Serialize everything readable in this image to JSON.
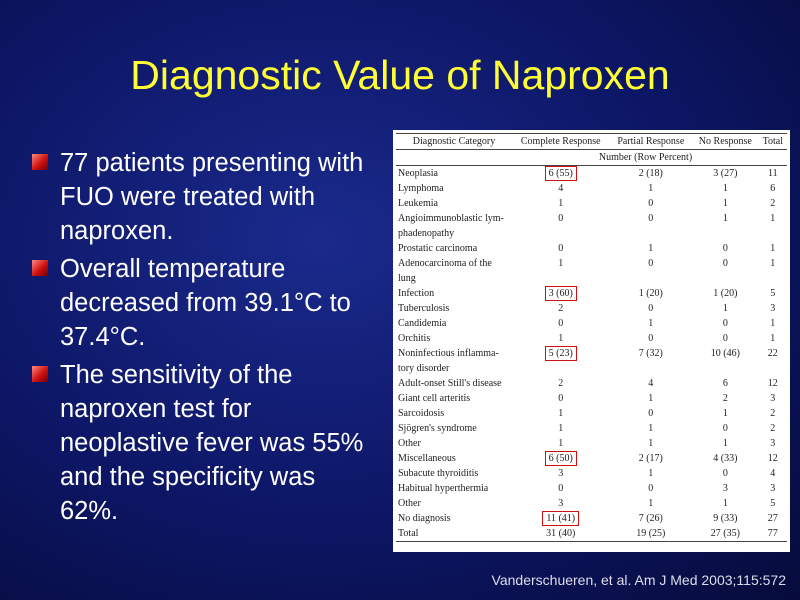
{
  "title": "Diagnostic Value of Naproxen",
  "bullets": [
    "77 patients presenting with FUO were treated with naproxen.",
    "Overall temperature decreased from 39.1°C to 37.4°C.",
    "The sensitivity of the naproxen test for neoplastive fever was 55% and the specificity was 62%."
  ],
  "table": {
    "columns": [
      "Diagnostic Category",
      "Complete Response",
      "Partial Response",
      "No Response",
      "Total"
    ],
    "subheader": "Number (Row Percent)",
    "rows": [
      {
        "cells": [
          "Neoplasia",
          "6 (55)",
          "2 (18)",
          "3 (27)",
          "11"
        ],
        "highlight": true
      },
      {
        "cells": [
          "Lymphoma",
          "4",
          "1",
          "1",
          "6"
        ]
      },
      {
        "cells": [
          "Leukemia",
          "1",
          "0",
          "1",
          "2"
        ]
      },
      {
        "cells": [
          "Angioimmunoblastic lym- phadenopathy",
          "0",
          "0",
          "1",
          "1"
        ]
      },
      {
        "cells": [
          "Prostatic carcinoma",
          "0",
          "1",
          "0",
          "1"
        ]
      },
      {
        "cells": [
          "Adenocarcinoma of the lung",
          "1",
          "0",
          "0",
          "1"
        ]
      },
      {
        "cells": [
          "Infection",
          "3 (60)",
          "1 (20)",
          "1 (20)",
          "5"
        ],
        "highlight": true
      },
      {
        "cells": [
          "Tuberculosis",
          "2",
          "0",
          "1",
          "3"
        ]
      },
      {
        "cells": [
          "Candidemia",
          "0",
          "1",
          "0",
          "1"
        ]
      },
      {
        "cells": [
          "Orchitis",
          "1",
          "0",
          "0",
          "1"
        ]
      },
      {
        "cells": [
          "Noninfectious inflamma- tory disorder",
          "5 (23)",
          "7 (32)",
          "10 (46)",
          "22"
        ],
        "highlight": true
      },
      {
        "cells": [
          "Adult-onset Still's disease",
          "2",
          "4",
          "6",
          "12"
        ]
      },
      {
        "cells": [
          "Giant cell arteritis",
          "0",
          "1",
          "2",
          "3"
        ]
      },
      {
        "cells": [
          "Sarcoidosis",
          "1",
          "0",
          "1",
          "2"
        ]
      },
      {
        "cells": [
          "Sjögren's syndrome",
          "1",
          "1",
          "0",
          "2"
        ]
      },
      {
        "cells": [
          "Other",
          "1",
          "1",
          "1",
          "3"
        ]
      },
      {
        "cells": [
          "Miscellaneous",
          "6 (50)",
          "2 (17)",
          "4 (33)",
          "12"
        ],
        "highlight": true
      },
      {
        "cells": [
          "Subacute thyroiditis",
          "3",
          "1",
          "0",
          "4"
        ]
      },
      {
        "cells": [
          "Habitual hyperthermia",
          "0",
          "0",
          "3",
          "3"
        ]
      },
      {
        "cells": [
          "Other",
          "3",
          "1",
          "1",
          "5"
        ]
      },
      {
        "cells": [
          "No diagnosis",
          "11 (41)",
          "7 (26)",
          "9 (33)",
          "27"
        ],
        "highlight": true
      },
      {
        "cells": [
          "Total",
          "31 (40)",
          "19 (25)",
          "27 (35)",
          "77"
        ]
      }
    ]
  },
  "citation": "Vanderschueren, et al. Am J Med 2003;115:572"
}
